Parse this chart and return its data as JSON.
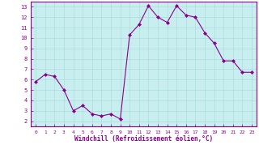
{
  "x": [
    0,
    1,
    2,
    3,
    4,
    5,
    6,
    7,
    8,
    9,
    10,
    11,
    12,
    13,
    14,
    15,
    16,
    17,
    18,
    19,
    20,
    21,
    22,
    23
  ],
  "y": [
    5.8,
    6.5,
    6.3,
    5.0,
    3.0,
    3.5,
    2.7,
    2.5,
    2.7,
    2.2,
    10.3,
    11.3,
    13.1,
    12.0,
    11.5,
    13.1,
    12.2,
    12.0,
    10.5,
    9.5,
    7.8,
    7.8,
    6.7,
    6.7
  ],
  "xlim": [
    -0.5,
    23.5
  ],
  "ylim": [
    1.5,
    13.5
  ],
  "yticks": [
    2,
    3,
    4,
    5,
    6,
    7,
    8,
    9,
    10,
    11,
    12,
    13
  ],
  "xticks": [
    0,
    1,
    2,
    3,
    4,
    5,
    6,
    7,
    8,
    9,
    10,
    11,
    12,
    13,
    14,
    15,
    16,
    17,
    18,
    19,
    20,
    21,
    22,
    23
  ],
  "xlabel": "Windchill (Refroidissement éolien,°C)",
  "line_color": "#8b008b",
  "marker": "D",
  "marker_size": 2,
  "bg_color": "#c8eef0",
  "grid_color": "#aadddd",
  "axis_label_color": "#8b008b",
  "tick_label_color": "#8b008b",
  "spine_color": "#8b008b",
  "fig_bg": "#ffffff"
}
